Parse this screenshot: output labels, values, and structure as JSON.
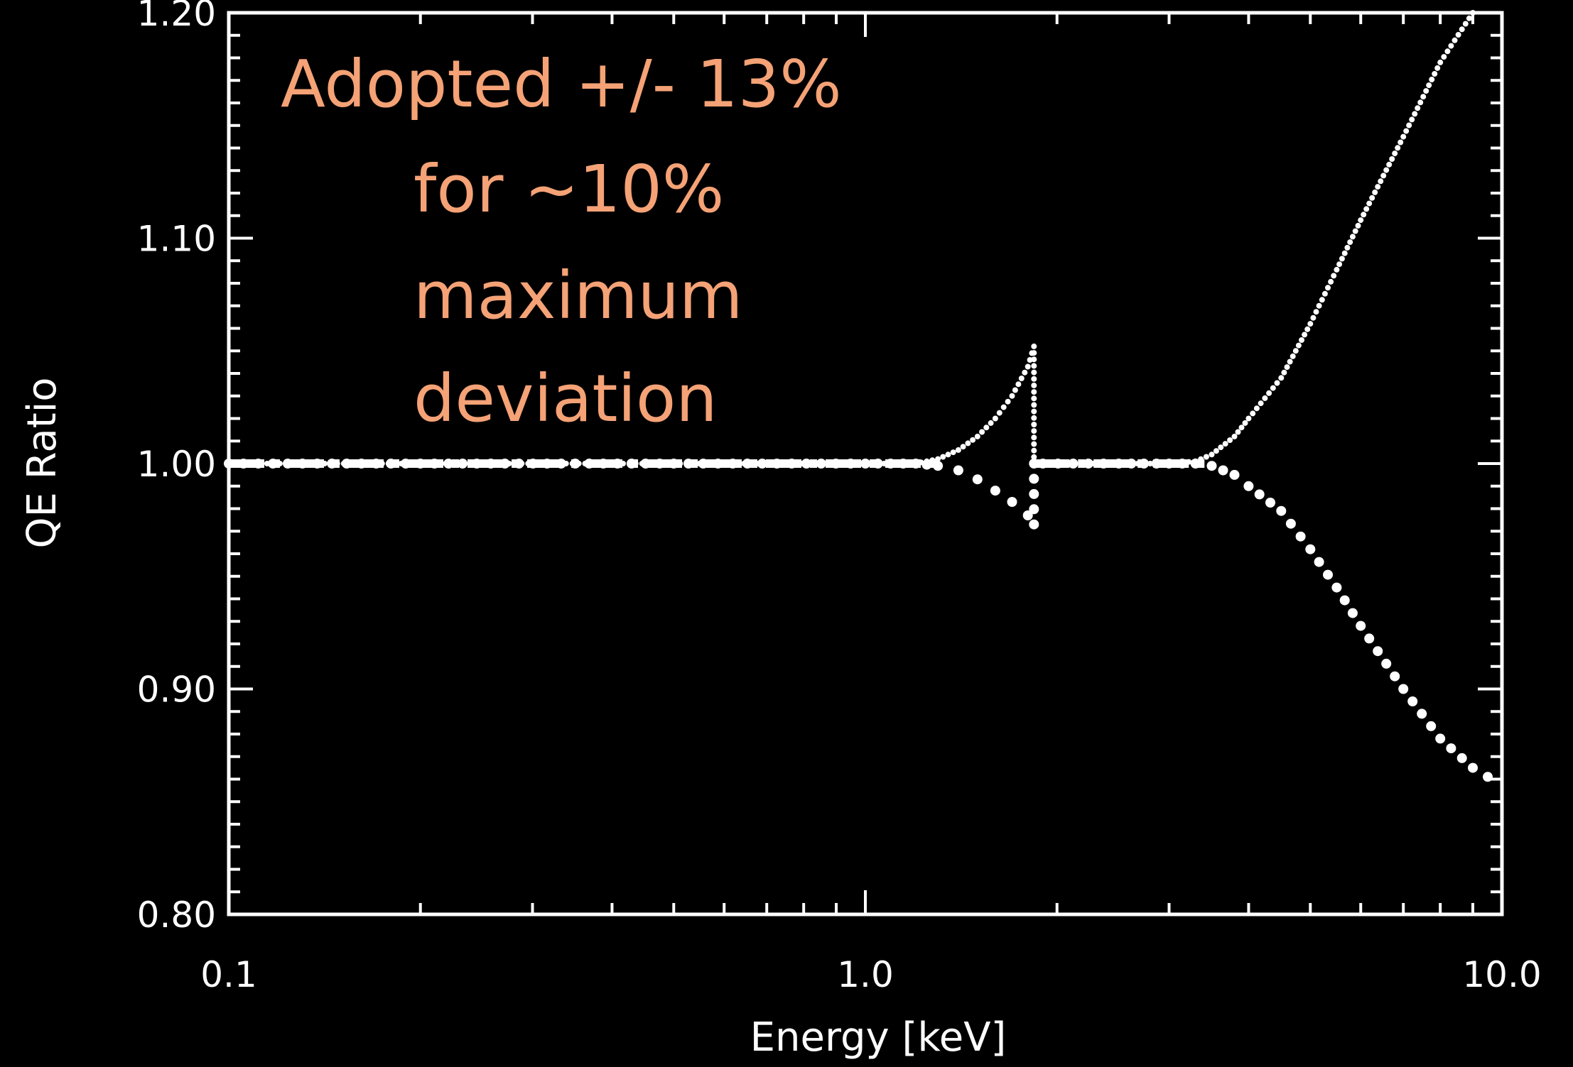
{
  "chart_data": {
    "type": "scatter",
    "title": "",
    "xlabel": "Energy [keV]",
    "ylabel": "QE Ratio",
    "x_scale": "log",
    "xlim": [
      0.1,
      10.0
    ],
    "ylim": [
      0.8,
      1.2
    ],
    "x_tick_labels": [
      "0.1",
      "1.0",
      "10.0"
    ],
    "x_ticks": [
      0.1,
      1.0,
      10.0
    ],
    "y_tick_labels": [
      "0.80",
      "0.90",
      "1.00",
      "1.10",
      "1.20"
    ],
    "y_ticks": [
      0.8,
      0.9,
      1.0,
      1.1,
      1.2
    ],
    "grid": false,
    "background_color": "#000000",
    "foreground_color": "#ffffff",
    "annotation": {
      "lines": [
        "Adopted +/- 13%",
        "for ~10%",
        "maximum",
        "deviation"
      ],
      "color": "#f4a276"
    },
    "series": [
      {
        "style": "small-dots",
        "x": [
          0.1,
          0.2,
          0.5,
          1.0,
          1.2,
          1.3,
          1.4,
          1.5,
          1.6,
          1.7,
          1.8,
          1.84,
          1.84,
          1.9,
          2.5,
          3.0,
          3.3,
          3.5,
          3.8,
          4.0,
          4.5,
          5.0,
          5.5,
          6.0,
          7.0,
          8.0,
          9.0
        ],
        "y": [
          1.0,
          1.0,
          1.0,
          1.0,
          1.0,
          1.002,
          1.006,
          1.012,
          1.02,
          1.03,
          1.043,
          1.052,
          1.0,
          1.0,
          1.0,
          1.0,
          1.001,
          1.004,
          1.012,
          1.02,
          1.038,
          1.062,
          1.086,
          1.108,
          1.145,
          1.178,
          1.2
        ]
      },
      {
        "style": "large-dots",
        "x": [
          0.1,
          0.2,
          0.5,
          1.0,
          1.2,
          1.3,
          1.4,
          1.5,
          1.6,
          1.7,
          1.8,
          1.84,
          1.84,
          1.9,
          2.5,
          3.0,
          3.3,
          3.5,
          3.8,
          4.0,
          4.5,
          5.0,
          5.5,
          6.0,
          7.0,
          8.0,
          9.0,
          9.5
        ],
        "y": [
          1.0,
          1.0,
          1.0,
          1.0,
          1.0,
          0.999,
          0.997,
          0.993,
          0.988,
          0.983,
          0.977,
          0.973,
          1.0,
          1.0,
          1.0,
          1.0,
          1.0,
          0.999,
          0.995,
          0.99,
          0.979,
          0.962,
          0.945,
          0.928,
          0.9,
          0.878,
          0.865,
          0.861
        ]
      },
      {
        "style": "dash-dot",
        "x": [
          0.1,
          1.3,
          1.84,
          3.5
        ],
        "y": [
          1.0,
          1.0,
          1.0,
          1.0
        ]
      }
    ]
  }
}
